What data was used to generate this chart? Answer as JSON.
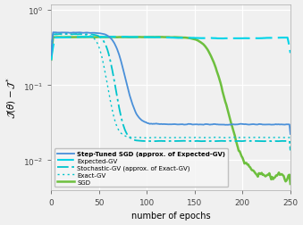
{
  "title": "",
  "xlabel": "number of epochs",
  "ylabel": "$\\mathcal{J}(\\theta) - \\mathcal{J}^*$",
  "xlim": [
    0,
    250
  ],
  "ylim": [
    0.004,
    1.2
  ],
  "background_color": "#f0f0f0",
  "grid_color": "#ffffff",
  "legend_labels": [
    "Step-Tuned SGD (approx. of Expected-GV)",
    "Expected-GV",
    "Stochastic-GV (approx. of Exact-GV)",
    "Exact-GV",
    "SGD"
  ],
  "line_colors": {
    "step_tuned": "#4a90d9",
    "expected_gv": "#00d4e8",
    "stochastic_gv": "#00c4cc",
    "exact_gv": "#00c4cc",
    "sgd": "#6dbf3e"
  },
  "seed": 0
}
